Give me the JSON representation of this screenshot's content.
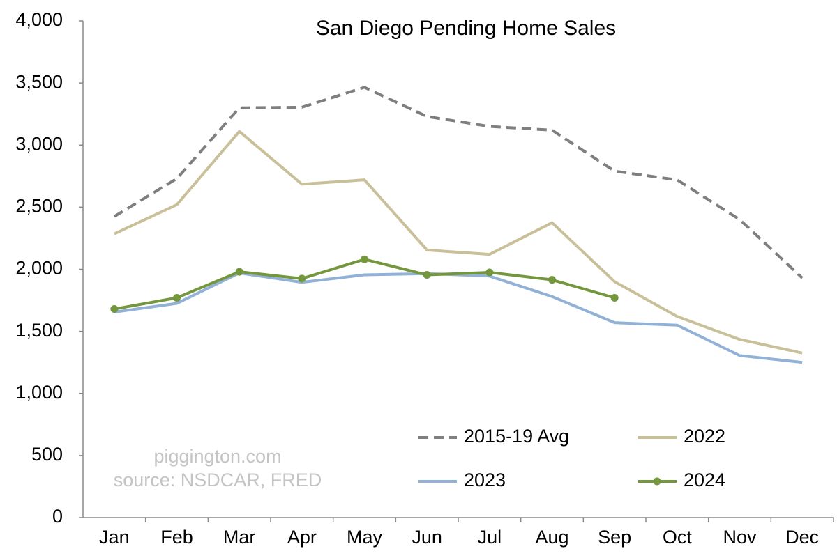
{
  "chart_data": {
    "type": "line",
    "title": "San Diego Pending Home Sales",
    "categories": [
      "Jan",
      "Feb",
      "Mar",
      "Apr",
      "May",
      "Jun",
      "Jul",
      "Aug",
      "Sep",
      "Oct",
      "Nov",
      "Dec"
    ],
    "series": [
      {
        "name": "2015-19 Avg",
        "color": "#7f7f7f",
        "line_style": "dashed",
        "markers": false,
        "values": [
          2425,
          2730,
          3300,
          3305,
          3465,
          3230,
          3150,
          3120,
          2790,
          2720,
          2400,
          1930
        ]
      },
      {
        "name": "2022",
        "color": "#c9c09a",
        "line_style": "solid",
        "markers": false,
        "values": [
          2285,
          2520,
          3110,
          2685,
          2720,
          2155,
          2120,
          2375,
          1900,
          1620,
          1435,
          1325
        ]
      },
      {
        "name": "2023",
        "color": "#91b1d6",
        "line_style": "solid",
        "markers": false,
        "values": [
          1655,
          1725,
          1970,
          1895,
          1955,
          1965,
          1945,
          1780,
          1570,
          1550,
          1305,
          1250
        ]
      },
      {
        "name": "2024",
        "color": "#74963c",
        "line_style": "solid",
        "markers": true,
        "values": [
          1680,
          1770,
          1980,
          1925,
          2080,
          1955,
          1975,
          1915,
          1770,
          null,
          null,
          null
        ]
      }
    ],
    "ylim": [
      0,
      4000
    ],
    "yticks": [
      0,
      500,
      {
        "value": 1000,
        "label": "1,000"
      },
      {
        "value": 1500,
        "label": "1,500"
      },
      {
        "value": 2000,
        "label": "2,000"
      },
      {
        "value": 2500,
        "label": "2,500"
      },
      {
        "value": 3000,
        "label": "3,000"
      },
      {
        "value": 3500,
        "label": "3,500"
      },
      {
        "value": 4000,
        "label": "4,000"
      }
    ],
    "grid": false,
    "legend": "bottom-right",
    "annotations": [
      "piggington.com",
      "source: NSDCAR, FRED"
    ]
  }
}
